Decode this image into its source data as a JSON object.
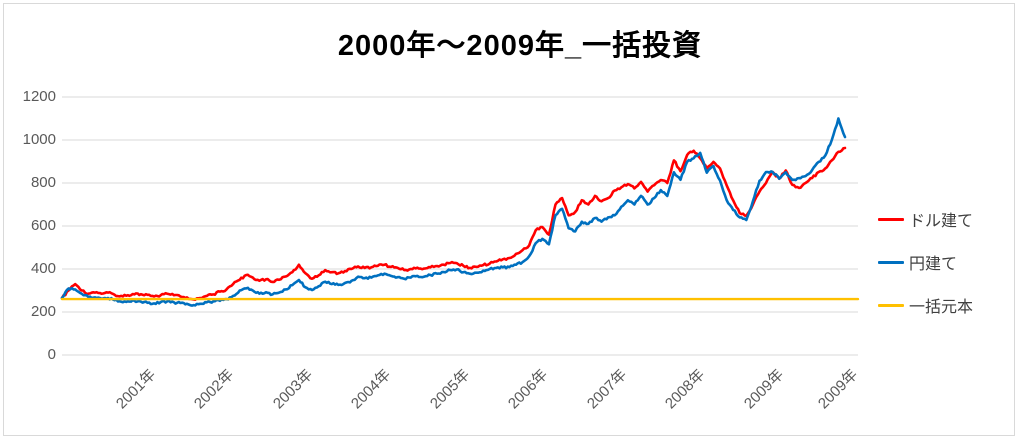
{
  "title": "2000年〜2009年_一括投資",
  "legend": {
    "items": [
      {
        "label": "ドル建て",
        "color": "#FF0000"
      },
      {
        "label": "円建て",
        "color": "#0070C0"
      },
      {
        "label": "一括元本",
        "color": "#FFC000"
      }
    ]
  },
  "y_axis": {
    "tick_labels": [
      "0",
      "200",
      "400",
      "600",
      "800",
      "1000",
      "1200"
    ],
    "tick_values": [
      0,
      200,
      400,
      600,
      800,
      1000,
      1200
    ]
  },
  "x_axis": {
    "tick_labels": [
      "2001年",
      "2002年",
      "2003年",
      "2004年",
      "2005年",
      "2006年",
      "2007年",
      "2008年",
      "2009年",
      "2009年"
    ],
    "tick_positions_years": [
      2001,
      2002,
      2003,
      2004,
      2005,
      2006,
      2007,
      2008,
      2009,
      2009.95
    ]
  },
  "chart_data": {
    "type": "line",
    "title": "2000年〜2009年_一括投資",
    "x_start_year": 2000,
    "x_step": "1 month",
    "x_end_year": 2009.92,
    "ylim": [
      0,
      1200
    ],
    "grid": true,
    "gridline_color": "#d9d9d9",
    "legend_position": "right",
    "series": [
      {
        "name": "ドル建て",
        "color": "#FF0000",
        "values": [
          265,
          300,
          330,
          300,
          285,
          290,
          285,
          290,
          280,
          275,
          278,
          282,
          283,
          280,
          272,
          278,
          285,
          278,
          272,
          268,
          258,
          265,
          275,
          282,
          295,
          305,
          330,
          350,
          372,
          360,
          345,
          352,
          340,
          350,
          365,
          385,
          420,
          380,
          355,
          370,
          395,
          385,
          380,
          390,
          400,
          412,
          405,
          408,
          415,
          420,
          410,
          405,
          395,
          400,
          406,
          402,
          408,
          414,
          420,
          428,
          427,
          415,
          405,
          410,
          418,
          425,
          435,
          445,
          451,
          470,
          488,
          510,
          580,
          595,
          560,
          700,
          730,
          650,
          665,
          720,
          700,
          740,
          715,
          730,
          765,
          780,
          795,
          775,
          805,
          760,
          790,
          814,
          800,
          905,
          855,
          930,
          950,
          915,
          868,
          898,
          868,
          790,
          720,
          660,
          647,
          700,
          760,
          800,
          851,
          820,
          858,
          791,
          777,
          800,
          823,
          851,
          868,
          905,
          945,
          963
        ]
      },
      {
        "name": "円建て",
        "color": "#0070C0",
        "values": [
          265,
          310,
          305,
          285,
          270,
          268,
          262,
          265,
          255,
          248,
          250,
          252,
          248,
          243,
          240,
          246,
          250,
          245,
          242,
          238,
          232,
          238,
          245,
          250,
          252,
          260,
          275,
          300,
          310,
          300,
          285,
          292,
          282,
          290,
          305,
          325,
          349,
          315,
          302,
          320,
          341,
          330,
          326,
          335,
          345,
          364,
          357,
          360,
          370,
          378,
          368,
          362,
          355,
          360,
          368,
          364,
          372,
          378,
          386,
          395,
          398,
          385,
          378,
          383,
          392,
          400,
          405,
          408,
          409,
          420,
          432,
          460,
          520,
          540,
          515,
          650,
          680,
          590,
          575,
          620,
          610,
          637,
          620,
          640,
          650,
          690,
          720,
          700,
          740,
          700,
          730,
          767,
          740,
          850,
          815,
          898,
          915,
          940,
          848,
          879,
          812,
          721,
          675,
          640,
          628,
          715,
          810,
          851,
          851,
          820,
          850,
          814,
          823,
          832,
          860,
          898,
          928,
          1000,
          1100,
          1014
        ]
      },
      {
        "name": "一括元本",
        "color": "#FFC000",
        "constant": 260
      }
    ]
  }
}
